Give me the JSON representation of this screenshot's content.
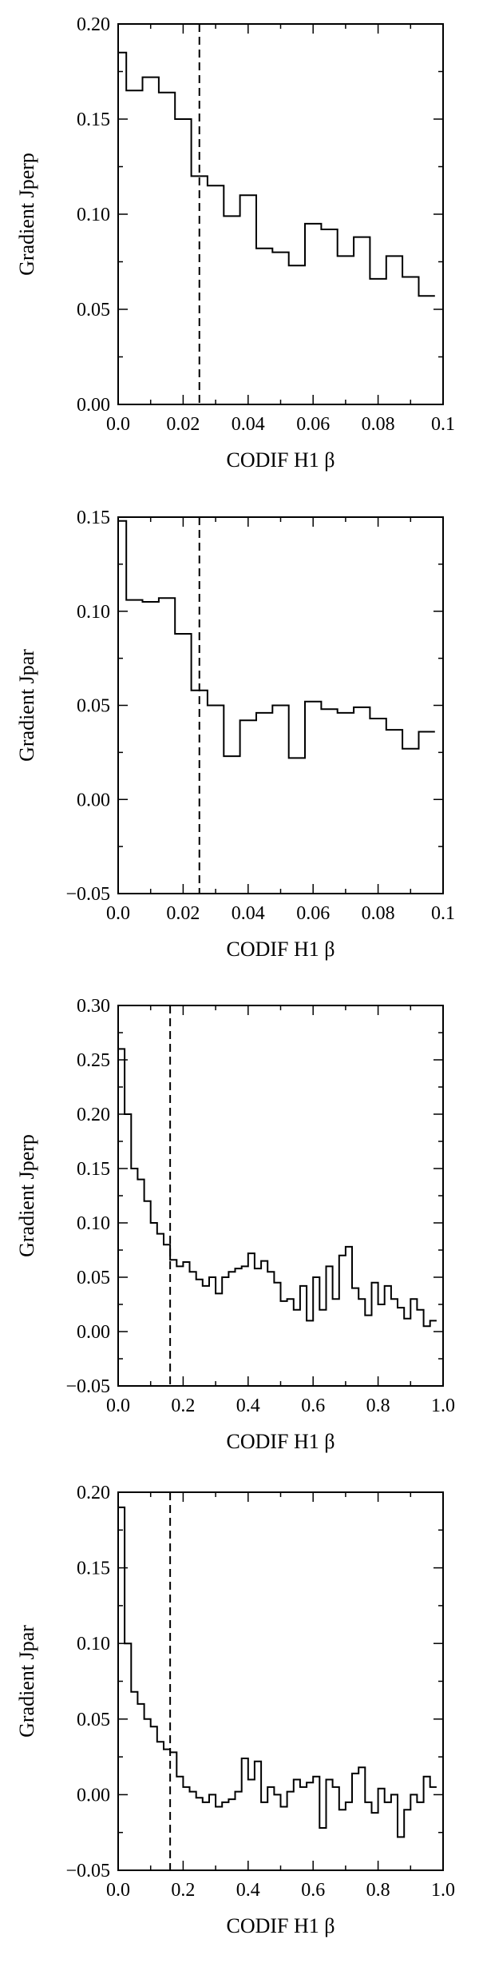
{
  "chart_data": [
    {
      "type": "line",
      "style": "step",
      "xlabel": "CODIF H1 β",
      "ylabel": "Gradient Jperp",
      "xlim": [
        0,
        0.1
      ],
      "ylim": [
        0,
        0.2
      ],
      "xticks": [
        0.0,
        0.02,
        0.04,
        0.06,
        0.08,
        0.1
      ],
      "xtick_labels": [
        "0.0",
        "0.02",
        "0.04",
        "0.06",
        "0.08",
        "0.1"
      ],
      "yticks": [
        0.0,
        0.05,
        0.1,
        0.15,
        0.2
      ],
      "ytick_labels": [
        "0.00",
        "0.05",
        "0.10",
        "0.15",
        "0.20"
      ],
      "vline_x": 0.025,
      "x": [
        0.0,
        0.0025,
        0.005,
        0.0075,
        0.01,
        0.0125,
        0.015,
        0.0175,
        0.02,
        0.0225,
        0.025,
        0.0275,
        0.03,
        0.0325,
        0.035,
        0.0375,
        0.04,
        0.0425,
        0.045,
        0.0475,
        0.05,
        0.0525,
        0.055,
        0.0575,
        0.06,
        0.0625,
        0.065,
        0.0675,
        0.07,
        0.0725,
        0.075,
        0.0775,
        0.08,
        0.0825,
        0.085,
        0.0875,
        0.09,
        0.0925,
        0.095
      ],
      "y": [
        0.185,
        0.165,
        0.165,
        0.172,
        0.172,
        0.164,
        0.164,
        0.15,
        0.15,
        0.12,
        0.12,
        0.115,
        0.115,
        0.099,
        0.099,
        0.11,
        0.11,
        0.082,
        0.082,
        0.08,
        0.08,
        0.073,
        0.073,
        0.095,
        0.095,
        0.092,
        0.092,
        0.078,
        0.078,
        0.088,
        0.088,
        0.066,
        0.066,
        0.078,
        0.078,
        0.067,
        0.067,
        0.057,
        0.057
      ]
    },
    {
      "type": "line",
      "style": "step",
      "xlabel": "CODIF H1 β",
      "ylabel": "Gradient Jpar",
      "xlim": [
        0,
        0.1
      ],
      "ylim": [
        -0.05,
        0.15
      ],
      "xticks": [
        0.0,
        0.02,
        0.04,
        0.06,
        0.08,
        0.1
      ],
      "xtick_labels": [
        "0.0",
        "0.02",
        "0.04",
        "0.06",
        "0.08",
        "0.1"
      ],
      "yticks": [
        -0.05,
        0.0,
        0.05,
        0.1,
        0.15
      ],
      "ytick_labels": [
        "−0.05",
        "0.00",
        "0.05",
        "0.10",
        "0.15"
      ],
      "vline_x": 0.025,
      "x": [
        0.0,
        0.0025,
        0.005,
        0.0075,
        0.01,
        0.0125,
        0.015,
        0.0175,
        0.02,
        0.0225,
        0.025,
        0.0275,
        0.03,
        0.0325,
        0.035,
        0.0375,
        0.04,
        0.0425,
        0.045,
        0.0475,
        0.05,
        0.0525,
        0.055,
        0.0575,
        0.06,
        0.0625,
        0.065,
        0.0675,
        0.07,
        0.0725,
        0.075,
        0.0775,
        0.08,
        0.0825,
        0.085,
        0.0875,
        0.09,
        0.0925,
        0.095
      ],
      "y": [
        0.148,
        0.106,
        0.106,
        0.105,
        0.105,
        0.107,
        0.107,
        0.088,
        0.088,
        0.058,
        0.058,
        0.05,
        0.05,
        0.023,
        0.023,
        0.042,
        0.042,
        0.046,
        0.046,
        0.05,
        0.05,
        0.022,
        0.022,
        0.052,
        0.052,
        0.048,
        0.048,
        0.046,
        0.046,
        0.049,
        0.049,
        0.043,
        0.043,
        0.037,
        0.037,
        0.027,
        0.027,
        0.036,
        0.036
      ]
    },
    {
      "type": "line",
      "style": "step",
      "xlabel": "CODIF H1 β",
      "ylabel": "Gradient Jperp",
      "xlim": [
        0,
        1.0
      ],
      "ylim": [
        -0.05,
        0.3
      ],
      "xticks": [
        0.0,
        0.2,
        0.4,
        0.6,
        0.8,
        1.0
      ],
      "xtick_labels": [
        "0.0",
        "0.2",
        "0.4",
        "0.6",
        "0.8",
        "1.0"
      ],
      "yticks": [
        -0.05,
        0.0,
        0.05,
        0.1,
        0.15,
        0.2,
        0.25,
        0.3
      ],
      "ytick_labels": [
        "−0.05",
        "0.00",
        "0.05",
        "0.10",
        "0.15",
        "0.20",
        "0.25",
        "0.30"
      ],
      "vline_x": 0.16,
      "x": [
        0.0,
        0.02,
        0.04,
        0.06,
        0.08,
        0.1,
        0.12,
        0.14,
        0.16,
        0.18,
        0.2,
        0.22,
        0.24,
        0.26,
        0.28,
        0.3,
        0.32,
        0.34,
        0.36,
        0.38,
        0.4,
        0.42,
        0.44,
        0.46,
        0.48,
        0.5,
        0.52,
        0.54,
        0.56,
        0.58,
        0.6,
        0.62,
        0.64,
        0.66,
        0.68,
        0.7,
        0.72,
        0.74,
        0.76,
        0.78,
        0.8,
        0.82,
        0.84,
        0.86,
        0.88,
        0.9,
        0.92,
        0.94,
        0.96
      ],
      "y": [
        0.26,
        0.2,
        0.15,
        0.14,
        0.12,
        0.1,
        0.09,
        0.08,
        0.066,
        0.06,
        0.064,
        0.055,
        0.048,
        0.042,
        0.05,
        0.035,
        0.05,
        0.055,
        0.058,
        0.06,
        0.072,
        0.058,
        0.065,
        0.055,
        0.045,
        0.028,
        0.03,
        0.02,
        0.042,
        0.01,
        0.05,
        0.02,
        0.06,
        0.03,
        0.07,
        0.078,
        0.04,
        0.03,
        0.015,
        0.045,
        0.025,
        0.042,
        0.03,
        0.022,
        0.012,
        0.03,
        0.02,
        0.005,
        0.01
      ]
    },
    {
      "type": "line",
      "style": "step",
      "xlabel": "CODIF H1 β",
      "ylabel": "Gradient Jpar",
      "xlim": [
        0,
        1.0
      ],
      "ylim": [
        -0.05,
        0.2
      ],
      "xticks": [
        0.0,
        0.2,
        0.4,
        0.6,
        0.8,
        1.0
      ],
      "xtick_labels": [
        "0.0",
        "0.2",
        "0.4",
        "0.6",
        "0.8",
        "1.0"
      ],
      "yticks": [
        -0.05,
        0.0,
        0.05,
        0.1,
        0.15,
        0.2
      ],
      "ytick_labels": [
        "−0.05",
        "0.00",
        "0.05",
        "0.10",
        "0.15",
        "0.20"
      ],
      "vline_x": 0.16,
      "x": [
        0.0,
        0.02,
        0.04,
        0.06,
        0.08,
        0.1,
        0.12,
        0.14,
        0.16,
        0.18,
        0.2,
        0.22,
        0.24,
        0.26,
        0.28,
        0.3,
        0.32,
        0.34,
        0.36,
        0.38,
        0.4,
        0.42,
        0.44,
        0.46,
        0.48,
        0.5,
        0.52,
        0.54,
        0.56,
        0.58,
        0.6,
        0.62,
        0.64,
        0.66,
        0.68,
        0.7,
        0.72,
        0.74,
        0.76,
        0.78,
        0.8,
        0.82,
        0.84,
        0.86,
        0.88,
        0.9,
        0.92,
        0.94,
        0.96
      ],
      "y": [
        0.19,
        0.1,
        0.068,
        0.06,
        0.05,
        0.045,
        0.035,
        0.03,
        0.028,
        0.012,
        0.005,
        0.002,
        -0.002,
        -0.005,
        0.0,
        -0.008,
        -0.005,
        -0.003,
        0.002,
        0.024,
        0.01,
        0.022,
        -0.005,
        0.005,
        0.0,
        -0.008,
        0.002,
        0.01,
        0.005,
        0.008,
        0.012,
        -0.022,
        0.01,
        0.005,
        -0.01,
        -0.005,
        0.014,
        0.018,
        -0.005,
        -0.012,
        0.004,
        -0.005,
        0.0,
        -0.028,
        -0.01,
        0.0,
        -0.005,
        0.012,
        0.005
      ]
    }
  ]
}
